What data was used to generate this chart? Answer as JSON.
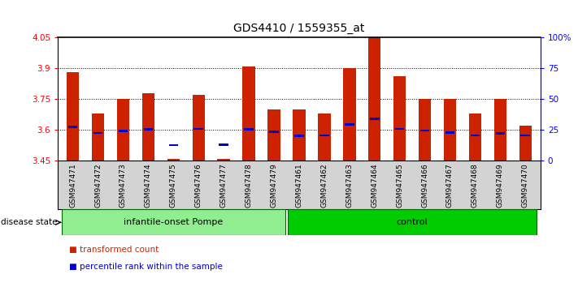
{
  "title": "GDS4410 / 1559355_at",
  "samples": [
    "GSM947471",
    "GSM947472",
    "GSM947473",
    "GSM947474",
    "GSM947475",
    "GSM947476",
    "GSM947477",
    "GSM947478",
    "GSM947479",
    "GSM947461",
    "GSM947462",
    "GSM947463",
    "GSM947464",
    "GSM947465",
    "GSM947466",
    "GSM947467",
    "GSM947468",
    "GSM947469",
    "GSM947470"
  ],
  "groups": [
    {
      "label": "infantile-onset Pompe",
      "start": 0,
      "end": 9,
      "color": "#90EE90"
    },
    {
      "label": "control",
      "start": 9,
      "end": 19,
      "color": "#00CC00"
    }
  ],
  "red_values": [
    3.88,
    3.68,
    3.75,
    3.78,
    3.46,
    3.77,
    3.46,
    3.91,
    3.7,
    3.7,
    3.68,
    3.9,
    4.05,
    3.86,
    3.75,
    3.75,
    3.68,
    3.75,
    3.62
  ],
  "blue_values": [
    3.615,
    3.585,
    3.595,
    3.603,
    3.525,
    3.605,
    3.527,
    3.603,
    3.59,
    3.572,
    3.574,
    3.627,
    3.655,
    3.605,
    3.597,
    3.586,
    3.574,
    3.582,
    3.574
  ],
  "ymin": 3.45,
  "ymax": 4.05,
  "yticks": [
    3.45,
    3.6,
    3.75,
    3.9,
    4.05
  ],
  "ytick_labels": [
    "3.45",
    "3.6",
    "3.75",
    "3.9",
    "4.05"
  ],
  "grid_lines": [
    3.6,
    3.75,
    3.9
  ],
  "right_yticks": [
    0,
    25,
    50,
    75,
    100
  ],
  "right_ytick_labels": [
    "0",
    "25",
    "50",
    "75",
    "100%"
  ],
  "bar_color": "#CC2200",
  "blue_color": "#0000CC",
  "bg_color": "#FFFFFF",
  "disease_state_label": "disease state",
  "legend_items": [
    {
      "color": "#CC2200",
      "label": "transformed count"
    },
    {
      "color": "#0000CC",
      "label": "percentile rank within the sample"
    }
  ],
  "xtick_bg": "#D3D3D3",
  "group_border_color": "#006600"
}
